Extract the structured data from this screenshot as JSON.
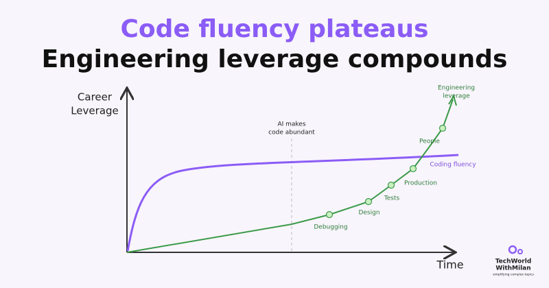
{
  "header": {
    "title": "Code fluency plateaus",
    "subtitle": "Engineering leverage compounds"
  },
  "axes": {
    "y_label": [
      "Career",
      "Leverage"
    ],
    "x_label": "Time"
  },
  "annotation": [
    "AI makes",
    "code abundant"
  ],
  "curves": {
    "engineering": [
      "Engineering",
      "leverage"
    ],
    "coding": "Coding fluency"
  },
  "milestones": [
    "Debugging",
    "Design",
    "Tests",
    "Production",
    "People"
  ],
  "logo": {
    "lines": [
      "TechWorld",
      "WithMilan"
    ],
    "tagline": "simplifying complex topics"
  }
}
